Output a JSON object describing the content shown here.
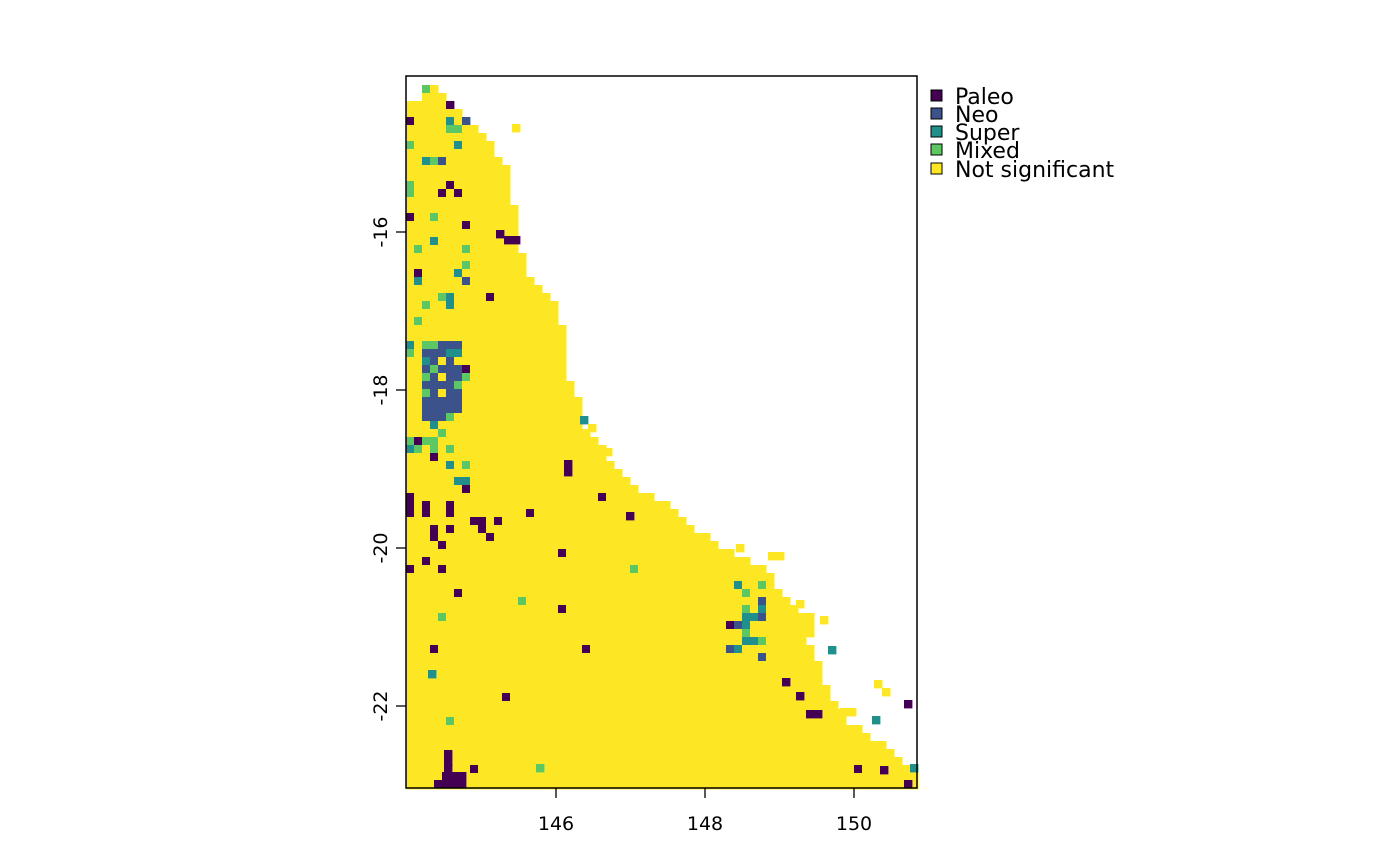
{
  "map": {
    "type": "raster",
    "x_ticks": [
      "146",
      "148",
      "150"
    ],
    "y_ticks": [
      "-16",
      "-18",
      "-20",
      "-22"
    ],
    "legend": [
      {
        "label": "Paleo",
        "color": "#440154"
      },
      {
        "label": "Neo",
        "color": "#3b528b"
      },
      {
        "label": "Super",
        "color": "#21908c"
      },
      {
        "label": "Mixed",
        "color": "#5dc863"
      },
      {
        "label": "Not significant",
        "color": "#fde725"
      }
    ]
  }
}
